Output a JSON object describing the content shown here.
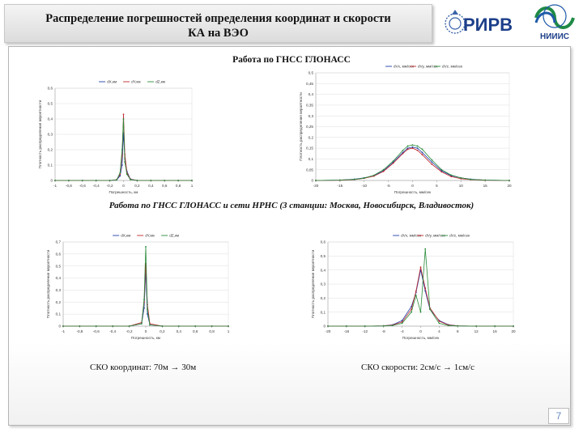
{
  "slide": {
    "title_line1": "Распределение погрешностей определения координат и скорости",
    "title_line2": "КА на ВЭО",
    "section1_heading": "Работа по ГНСС ГЛОНАСС",
    "section2_heading": "Работа по ГНСС ГЛОНАСС и сети НРНС (3 станции: Москва, Новосибирск, Владивосток)",
    "caption_coord": "СКО координат: 70м  →  30м",
    "caption_speed": "СКО скорости: 2см/с  →  1см/с",
    "page_number": "7",
    "logo1_text": "РИРВ",
    "logo2_text": "НИИИС"
  },
  "colors": {
    "blue": "#1f3fa8",
    "red": "#c0272d",
    "green": "#2a8c3a"
  },
  "chart_data": [
    {
      "type": "line",
      "xlabel": "Погрешность, км",
      "ylabel": "Плотность распределения вероятности",
      "xlim": [
        -1,
        1
      ],
      "ylim": [
        0,
        0.6
      ],
      "xticks": [
        "-1",
        "-0,8",
        "-0,6",
        "-0,4",
        "-0,2",
        "0",
        "0,2",
        "0,4",
        "0,6",
        "0,8",
        "1"
      ],
      "yticks": [
        "0",
        "0,1",
        "0,2",
        "0,3",
        "0,4",
        "0,5",
        "0,6"
      ],
      "legend": [
        "dX,км",
        "dY,км",
        "dZ,км"
      ],
      "x": [
        -1,
        -0.8,
        -0.6,
        -0.4,
        -0.2,
        -0.1,
        -0.05,
        -0.02,
        0,
        0.02,
        0.05,
        0.1,
        0.2,
        0.4,
        0.6,
        0.8,
        1
      ],
      "series": [
        {
          "name": "dX,км",
          "color": "blue",
          "values": [
            0,
            0,
            0,
            0,
            0,
            0.003,
            0.03,
            0.1,
            0.31,
            0.14,
            0.06,
            0.01,
            0,
            0,
            0,
            0,
            0
          ]
        },
        {
          "name": "dY,км",
          "color": "red",
          "values": [
            0,
            0,
            0,
            0,
            0,
            0.005,
            0.04,
            0.16,
            0.43,
            0.17,
            0.05,
            0.008,
            0,
            0,
            0,
            0,
            0
          ]
        },
        {
          "name": "dZ,км",
          "color": "green",
          "values": [
            0,
            0,
            0,
            0,
            0,
            0.004,
            0.05,
            0.2,
            0.4,
            0.12,
            0.04,
            0.006,
            0,
            0,
            0,
            0,
            0
          ]
        }
      ]
    },
    {
      "type": "line",
      "xlabel": "Погрешность, мм/сек",
      "ylabel": "Плотность распределения вероятности",
      "xlim": [
        -20,
        20
      ],
      "ylim": [
        0,
        0.5
      ],
      "xticks": [
        "-20",
        "-15",
        "-10",
        "-5",
        "0",
        "5",
        "10",
        "15",
        "20"
      ],
      "yticks": [
        "0",
        "0,05",
        "0,1",
        "0,15",
        "0,2",
        "0,25",
        "0,3",
        "0,35",
        "0,4",
        "0,45",
        "0,5"
      ],
      "legend": [
        "dVx, мм/сек",
        "dVy, мм/сек",
        "dVz, мм/сек"
      ],
      "x": [
        -20,
        -15,
        -12,
        -10,
        -8,
        -6,
        -4,
        -2,
        -1,
        0,
        1,
        2,
        4,
        6,
        8,
        10,
        12,
        15,
        20
      ],
      "series": [
        {
          "name": "dVx, мм/сек",
          "color": "blue",
          "values": [
            0,
            0.002,
            0.006,
            0.012,
            0.022,
            0.045,
            0.085,
            0.13,
            0.15,
            0.155,
            0.15,
            0.13,
            0.085,
            0.045,
            0.022,
            0.012,
            0.006,
            0.002,
            0
          ]
        },
        {
          "name": "dVy, мм/сек",
          "color": "red",
          "values": [
            0,
            0.001,
            0.004,
            0.01,
            0.02,
            0.042,
            0.08,
            0.125,
            0.145,
            0.15,
            0.14,
            0.12,
            0.075,
            0.04,
            0.018,
            0.008,
            0.004,
            0.001,
            0
          ]
        },
        {
          "name": "dVz, мм/сек",
          "color": "green",
          "values": [
            0,
            0.002,
            0.005,
            0.011,
            0.024,
            0.05,
            0.09,
            0.14,
            0.16,
            0.165,
            0.16,
            0.145,
            0.095,
            0.05,
            0.025,
            0.012,
            0.005,
            0.002,
            0
          ]
        }
      ]
    },
    {
      "type": "line",
      "xlabel": "Погрешность, км",
      "ylabel": "Плотность распределения вероятности",
      "xlim": [
        -1,
        1
      ],
      "ylim": [
        0,
        0.7
      ],
      "xticks": [
        "-1",
        "-0,8",
        "-0,6",
        "-0,4",
        "-0,2",
        "0",
        "0,2",
        "0,4",
        "0,6",
        "0,8",
        "1"
      ],
      "yticks": [
        "0",
        "0,1",
        "0,2",
        "0,3",
        "0,4",
        "0,5",
        "0,6",
        "0,7"
      ],
      "legend": [
        "dX,км",
        "dY,км",
        "dZ,км"
      ],
      "x": [
        -1,
        -0.8,
        -0.6,
        -0.4,
        -0.2,
        -0.05,
        -0.02,
        0,
        0.02,
        0.05,
        0.2,
        0.4,
        0.6,
        0.8,
        1
      ],
      "series": [
        {
          "name": "dX,км",
          "color": "blue",
          "values": [
            0,
            0,
            0,
            0,
            0,
            0.02,
            0.15,
            0.46,
            0.1,
            0.01,
            0,
            0,
            0,
            0,
            0
          ]
        },
        {
          "name": "dY,км",
          "color": "red",
          "values": [
            0,
            0,
            0,
            0,
            0,
            0.03,
            0.2,
            0.52,
            0.18,
            0.02,
            0,
            0,
            0,
            0,
            0
          ]
        },
        {
          "name": "dZ,км",
          "color": "green",
          "values": [
            0,
            0,
            0,
            0,
            0,
            0.02,
            0.22,
            0.66,
            0.14,
            0.01,
            0,
            0,
            0,
            0,
            0
          ]
        }
      ]
    },
    {
      "type": "line",
      "xlabel": "Погрешность, мм/сек",
      "ylabel": "Плотность распределения вероятности",
      "xlim": [
        -20,
        20
      ],
      "ylim": [
        0,
        0.6
      ],
      "xticks": [
        "-20",
        "-16",
        "-12",
        "-8",
        "-4",
        "0",
        "4",
        "8",
        "12",
        "16",
        "20"
      ],
      "yticks": [
        "0",
        "0,1",
        "0,2",
        "0,3",
        "0,4",
        "0,5",
        "0,6"
      ],
      "legend": [
        "dVx, мм/сек",
        "dVy, мм/сек",
        "dVz, мм/сек"
      ],
      "x": [
        -20,
        -16,
        -12,
        -8,
        -6,
        -4,
        -2,
        -1,
        0,
        1,
        2,
        4,
        6,
        8,
        12,
        16,
        20
      ],
      "series": [
        {
          "name": "dVx, мм/сек",
          "color": "blue",
          "values": [
            0,
            0,
            0,
            0.002,
            0.01,
            0.04,
            0.14,
            0.24,
            0.4,
            0.25,
            0.12,
            0.04,
            0.01,
            0.002,
            0,
            0,
            0
          ]
        },
        {
          "name": "dVy, мм/сек",
          "color": "red",
          "values": [
            0,
            0,
            0,
            0.002,
            0.008,
            0.03,
            0.12,
            0.25,
            0.42,
            0.27,
            0.13,
            0.035,
            0.008,
            0.002,
            0,
            0,
            0
          ]
        },
        {
          "name": "dVz, мм/сек",
          "color": "green",
          "values": [
            0,
            0,
            0,
            0.001,
            0.005,
            0.02,
            0.1,
            0.22,
            0.1,
            0.55,
            0.12,
            0.02,
            0.004,
            0.001,
            0,
            0,
            0
          ]
        }
      ]
    }
  ]
}
